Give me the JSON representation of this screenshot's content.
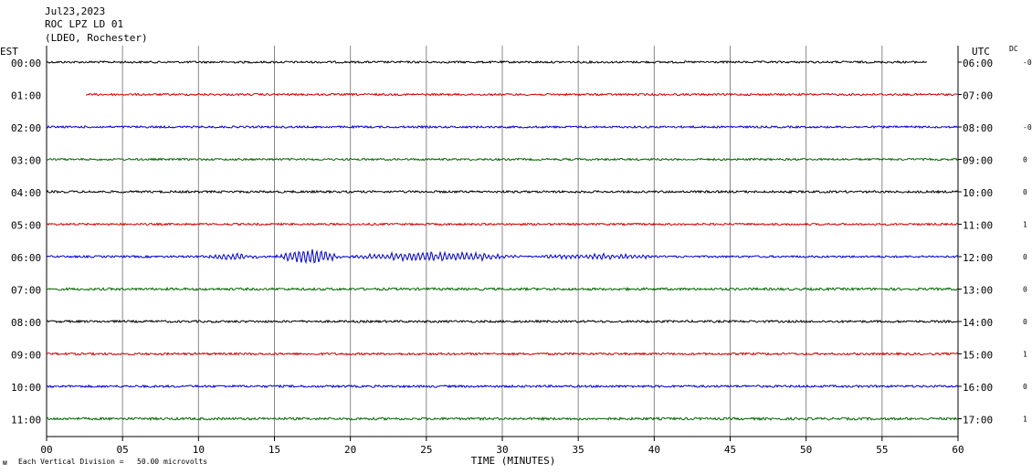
{
  "header": {
    "date": "Jul23,2023",
    "station": "ROC LPZ LD 01",
    "network": "(LDEO, Rochester)"
  },
  "chart_data": {
    "type": "line",
    "title": "ROC LPZ LD 01",
    "left_axis_title": "EST",
    "right_axis_title": "UTC",
    "dc_title": "DC",
    "xlabel": "TIME (MINUTES)",
    "xlim": [
      0,
      60
    ],
    "x_ticks": [
      "00",
      "05",
      "10",
      "15",
      "20",
      "25",
      "30",
      "35",
      "40",
      "45",
      "50",
      "55",
      "60"
    ],
    "scale_note": "Each Vertical Division =   50.00 microvolts",
    "colors": [
      "#000000",
      "#cc0000",
      "#0000cc",
      "#006600"
    ],
    "rows": [
      {
        "est": "00:00",
        "utc": "06:00",
        "dc": "-0",
        "start_min": 0.0,
        "end_min": 58.0,
        "amp": 1.0
      },
      {
        "est": "01:00",
        "utc": "07:00",
        "dc": "",
        "start_min": 2.6,
        "end_min": 60.0,
        "amp": 1.0
      },
      {
        "est": "02:00",
        "utc": "08:00",
        "dc": "-0",
        "start_min": 0.0,
        "end_min": 60.0,
        "amp": 1.0
      },
      {
        "est": "03:00",
        "utc": "09:00",
        "dc": "0",
        "start_min": 0.0,
        "end_min": 60.0,
        "amp": 1.0
      },
      {
        "est": "04:00",
        "utc": "10:00",
        "dc": "0",
        "start_min": 0.0,
        "end_min": 60.0,
        "amp": 1.1
      },
      {
        "est": "05:00",
        "utc": "11:00",
        "dc": "1",
        "start_min": 0.0,
        "end_min": 60.0,
        "amp": 1.0
      },
      {
        "est": "06:00",
        "utc": "12:00",
        "dc": "0",
        "start_min": 0.0,
        "end_min": 60.0,
        "amp": 1.0,
        "events": [
          {
            "start": 10.0,
            "end": 14.5,
            "amp": 3.0
          },
          {
            "start": 15.0,
            "end": 19.5,
            "amp": 8.0
          },
          {
            "start": 19.5,
            "end": 31.5,
            "amp": 5.0
          },
          {
            "start": 31.5,
            "end": 41.0,
            "amp": 2.5
          }
        ]
      },
      {
        "est": "07:00",
        "utc": "13:00",
        "dc": "0",
        "start_min": 0.0,
        "end_min": 60.0,
        "amp": 1.2
      },
      {
        "est": "08:00",
        "utc": "14:00",
        "dc": "0",
        "start_min": 0.0,
        "end_min": 60.0,
        "amp": 1.1
      },
      {
        "est": "09:00",
        "utc": "15:00",
        "dc": "1",
        "start_min": 0.0,
        "end_min": 60.0,
        "amp": 1.1
      },
      {
        "est": "10:00",
        "utc": "16:00",
        "dc": "0",
        "start_min": 0.0,
        "end_min": 60.0,
        "amp": 1.1
      },
      {
        "est": "11:00",
        "utc": "17:00",
        "dc": "1",
        "start_min": 0.0,
        "end_min": 60.0,
        "amp": 1.2
      }
    ]
  }
}
